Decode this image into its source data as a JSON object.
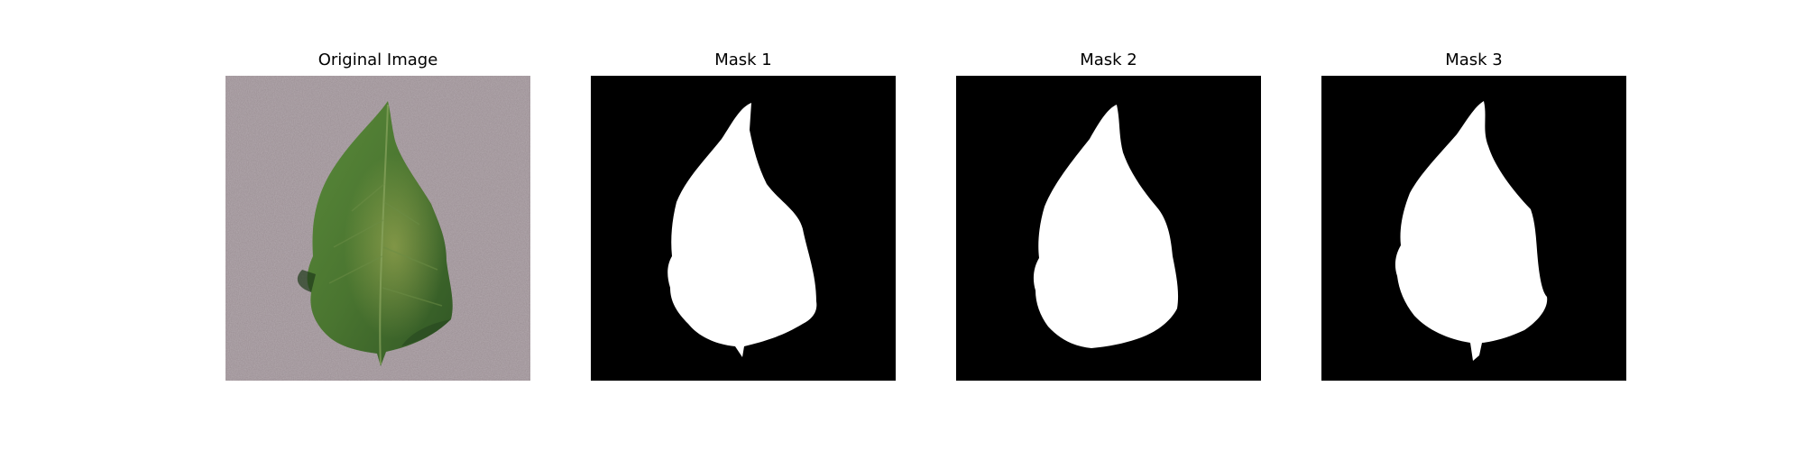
{
  "panels": [
    {
      "title": "Original Image",
      "kind": "photo"
    },
    {
      "title": "Mask 1",
      "kind": "mask"
    },
    {
      "title": "Mask 2",
      "kind": "mask"
    },
    {
      "title": "Mask 3",
      "kind": "mask"
    }
  ],
  "colors": {
    "background_surface": "#9a8e93",
    "leaf_dark": "#2f5524",
    "leaf_mid": "#4e7a33",
    "leaf_light": "#8ea552",
    "mask_background": "#000000",
    "mask_foreground": "#ffffff"
  }
}
